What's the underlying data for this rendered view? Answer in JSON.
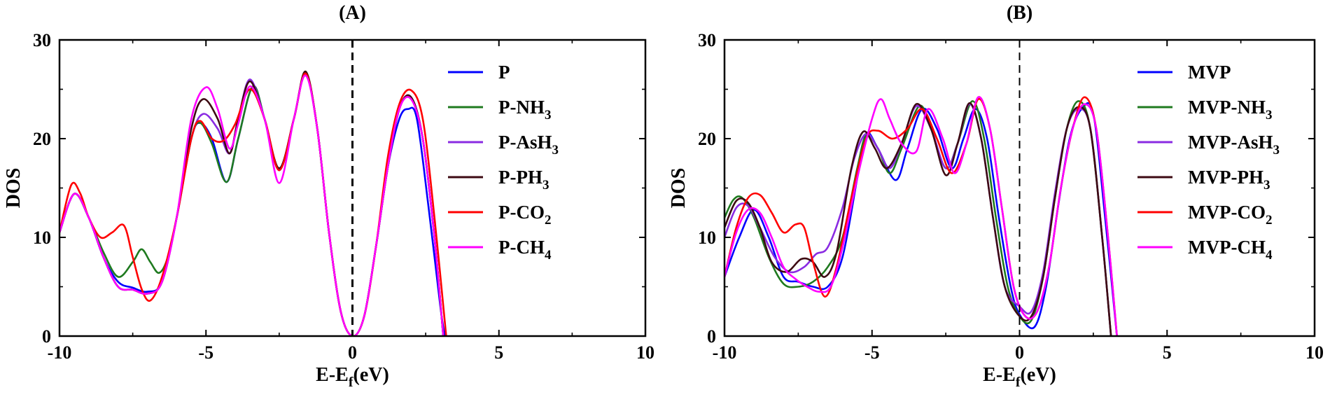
{
  "chart_data": [
    {
      "type": "line",
      "title": "(A)",
      "xlabel": "E-Ef(eV)",
      "xlabel_main": "E-E",
      "xlabel_sub": "f",
      "xlabel_tail": "(eV)",
      "ylabel": "DOS",
      "xlim": [
        -10,
        10
      ],
      "ylim": [
        0,
        30
      ],
      "xticks": [
        -10,
        -5,
        0,
        5,
        10
      ],
      "yticks": [
        0,
        10,
        20,
        30
      ],
      "xtick_labels": [
        "-10",
        "-5",
        "0",
        "5",
        "10"
      ],
      "ytick_labels": [
        "0",
        "10",
        "20",
        "30"
      ],
      "fermi_level": 0,
      "legend_position": "top-right",
      "series": [
        {
          "name": "P",
          "label_main": "P",
          "label_sub": "",
          "color": "#0000ff",
          "x": [
            -10,
            -9.5,
            -9,
            -8.5,
            -8,
            -7.5,
            -7,
            -6.5,
            -6,
            -5.5,
            -5.2,
            -4.8,
            -4.3,
            -3.9,
            -3.4,
            -3,
            -2.5,
            -2,
            -1.6,
            -1.2,
            -0.8,
            -0.4,
            0,
            0.4,
            0.8,
            1.2,
            1.6,
            1.9,
            2.2,
            2.6,
            3,
            3.15
          ],
          "y": [
            10.5,
            14.4,
            12,
            8,
            5.5,
            4.9,
            4.5,
            5.5,
            12,
            20,
            21.6,
            20,
            15.6,
            20,
            25.3,
            22,
            16.8,
            22,
            26.6,
            21,
            10.5,
            2.5,
            0,
            2,
            9,
            17,
            22,
            23,
            22,
            13,
            3,
            0
          ]
        },
        {
          "name": "P-NH3",
          "label_main": "P-NH",
          "label_sub": "3",
          "color": "#1f7a1f",
          "x": [
            -10,
            -9.5,
            -9,
            -8.5,
            -8,
            -7.5,
            -7.2,
            -6.9,
            -6.6,
            -6.3,
            -6,
            -5.5,
            -5.2,
            -4.8,
            -4.3,
            -3.9,
            -3.4,
            -3,
            -2.5,
            -2,
            -1.6,
            -1.2,
            -0.8,
            -0.4,
            0,
            0.4,
            0.8,
            1.2,
            1.6,
            2,
            2.4,
            2.8,
            3.1
          ],
          "y": [
            10.5,
            14.4,
            12,
            8.5,
            6,
            7.5,
            8.8,
            7.5,
            6.4,
            8,
            12,
            20,
            21.6,
            19.5,
            15.6,
            20,
            25.3,
            22,
            16.8,
            22,
            26.6,
            21,
            10.5,
            2.5,
            0,
            2,
            9,
            17,
            23,
            24.2,
            20,
            10,
            0
          ]
        },
        {
          "name": "P-AsH3",
          "label_main": "P-AsH",
          "label_sub": "3",
          "color": "#8a2be2",
          "x": [
            -10,
            -9.5,
            -9,
            -8.5,
            -8,
            -7.5,
            -7,
            -6.5,
            -6,
            -5.5,
            -5.1,
            -4.6,
            -4.2,
            -3.9,
            -3.5,
            -3,
            -2.5,
            -2,
            -1.6,
            -1.2,
            -0.8,
            -0.4,
            0,
            0.4,
            0.8,
            1.2,
            1.6,
            2,
            2.4,
            2.8,
            3.1
          ],
          "y": [
            10.5,
            14.4,
            12,
            8,
            5,
            4.7,
            4.3,
            5.5,
            12,
            20,
            22.5,
            21,
            18.5,
            22,
            26,
            22,
            16.8,
            22,
            26.6,
            21,
            10.5,
            2.5,
            0,
            2,
            9,
            17,
            23,
            24.2,
            20,
            10,
            0
          ]
        },
        {
          "name": "P-PH3",
          "label_main": "P-PH",
          "label_sub": "3",
          "color": "#3d0a12",
          "x": [
            -10,
            -9.5,
            -9,
            -8.5,
            -8,
            -7.5,
            -7,
            -6.5,
            -6,
            -5.5,
            -5.1,
            -4.6,
            -4.2,
            -3.9,
            -3.5,
            -3,
            -2.5,
            -2,
            -1.6,
            -1.2,
            -0.8,
            -0.4,
            0,
            0.4,
            0.8,
            1.2,
            1.6,
            2,
            2.4,
            2.8,
            3.1
          ],
          "y": [
            10.5,
            14.4,
            12,
            8,
            5,
            4.7,
            4.3,
            5.5,
            12,
            21,
            24,
            22,
            18.5,
            22,
            25.8,
            22,
            17,
            22,
            26.8,
            21,
            10.5,
            2.5,
            0,
            2,
            9,
            17,
            23,
            24.2,
            20,
            10,
            0
          ]
        },
        {
          "name": "P-CO2",
          "label_main": "P-CO",
          "label_sub": "2",
          "color": "#ff0000",
          "x": [
            -10,
            -9.6,
            -9.3,
            -9,
            -8.6,
            -8.2,
            -7.8,
            -7.5,
            -7.2,
            -6.9,
            -6.5,
            -6,
            -5.5,
            -5.2,
            -4.8,
            -4.4,
            -4,
            -3.5,
            -3,
            -2.5,
            -2,
            -1.6,
            -1.2,
            -0.8,
            -0.4,
            0,
            0.4,
            0.8,
            1.2,
            1.6,
            2,
            2.4,
            2.8,
            3.2
          ],
          "y": [
            10.5,
            15.3,
            14.5,
            12,
            10,
            10.5,
            11.2,
            8,
            4.8,
            3.6,
            6,
            12,
            20,
            21.8,
            20,
            19.8,
            21.5,
            25,
            22,
            16.8,
            22,
            26.6,
            21,
            10.5,
            2.5,
            0,
            2,
            9,
            18,
            23.5,
            24.9,
            22,
            12,
            0
          ]
        },
        {
          "name": "P-CH4",
          "label_main": "P-CH",
          "label_sub": "4",
          "color": "#ff00ff",
          "x": [
            -10,
            -9.5,
            -9,
            -8.5,
            -8,
            -7.5,
            -7,
            -6.5,
            -6,
            -5.5,
            -5,
            -4.6,
            -4.2,
            -3.9,
            -3.5,
            -3,
            -2.5,
            -2,
            -1.6,
            -1.2,
            -0.8,
            -0.4,
            0,
            0.4,
            0.8,
            1.2,
            1.6,
            2,
            2.4,
            2.8,
            3.1
          ],
          "y": [
            10.5,
            14.4,
            12,
            8,
            5,
            4.7,
            4.3,
            5.5,
            12,
            22,
            25.2,
            23,
            19,
            21.5,
            25.3,
            22,
            15.5,
            22,
            26.4,
            21,
            10.5,
            2.5,
            0,
            2,
            9,
            17,
            23,
            24,
            20,
            10,
            0
          ]
        }
      ]
    },
    {
      "type": "line",
      "title": "(B)",
      "xlabel": "E-Ef(eV)",
      "xlabel_main": "E-E",
      "xlabel_sub": "f",
      "xlabel_tail": "(eV)",
      "ylabel": "DOS",
      "xlim": [
        -10,
        10
      ],
      "ylim": [
        0,
        30
      ],
      "xticks": [
        -10,
        -5,
        0,
        5,
        10
      ],
      "yticks": [
        0,
        10,
        20,
        30
      ],
      "xtick_labels": [
        "-10",
        "-5",
        "0",
        "5",
        "10"
      ],
      "ytick_labels": [
        "0",
        "10",
        "20",
        "30"
      ],
      "fermi_level": 0,
      "legend_position": "top-right",
      "series": [
        {
          "name": "MVP",
          "label_main": "MVP",
          "label_sub": "",
          "color": "#0000ff",
          "x": [
            -10,
            -9.5,
            -9,
            -8.5,
            -8,
            -7.5,
            -7,
            -6.5,
            -6,
            -5.5,
            -5.2,
            -4.8,
            -4.2,
            -3.8,
            -3.3,
            -2.8,
            -2.3,
            -1.9,
            -1.5,
            -1.1,
            -0.7,
            -0.3,
            0,
            0.5,
            0.9,
            1.3,
            1.7,
            2.1,
            2.5,
            2.9,
            3.3
          ],
          "y": [
            6,
            10,
            12.8,
            10,
            6,
            5.5,
            5,
            5,
            8,
            16,
            20.5,
            19,
            15.8,
            19,
            23,
            21,
            17,
            20,
            23,
            20,
            12,
            5,
            2.2,
            0.9,
            5,
            13,
            20,
            23,
            22.5,
            12,
            0
          ]
        },
        {
          "name": "MVP-NH3",
          "label_main": "MVP-NH",
          "label_sub": "3",
          "color": "#1f7a1f",
          "x": [
            -10,
            -9.7,
            -9.4,
            -9,
            -8.5,
            -8,
            -7.5,
            -7,
            -6.5,
            -6,
            -5.5,
            -5.2,
            -4.8,
            -4.4,
            -4,
            -3.4,
            -3,
            -2.5,
            -2.1,
            -1.6,
            -1.2,
            -0.8,
            -0.4,
            0,
            0.4,
            0.8,
            1.2,
            1.6,
            2,
            2.4,
            2.8,
            3.1
          ],
          "y": [
            12,
            13.8,
            14,
            12,
            8,
            5.3,
            5,
            5.5,
            7,
            10,
            17,
            20.3,
            19,
            16.5,
            19,
            23.3,
            21,
            17,
            19.5,
            23.8,
            20,
            12,
            5,
            2,
            1.6,
            6,
            14,
            21,
            23.8,
            21,
            10,
            0
          ]
        },
        {
          "name": "MVP-AsH3",
          "label_main": "MVP-AsH",
          "label_sub": "3",
          "color": "#8a2be2",
          "x": [
            -10,
            -9.6,
            -9.2,
            -8.8,
            -8.3,
            -7.8,
            -7.3,
            -6.9,
            -6.5,
            -6,
            -5.6,
            -5.2,
            -4.8,
            -4.4,
            -4,
            -3.5,
            -3,
            -2.5,
            -2.1,
            -1.7,
            -1.3,
            -0.9,
            -0.5,
            0,
            0.4,
            0.8,
            1.2,
            1.6,
            2,
            2.4,
            2.8,
            3.1
          ],
          "y": [
            10,
            13,
            13.2,
            11,
            8,
            6.5,
            7,
            8.3,
            9,
            13,
            18,
            20.5,
            19,
            17,
            19.5,
            23.3,
            21,
            17,
            19.5,
            23.5,
            20,
            12,
            5,
            3,
            2.5,
            6.5,
            14.5,
            21,
            23,
            21,
            10,
            0
          ]
        },
        {
          "name": "MVP-PH3",
          "label_main": "MVP-PH",
          "label_sub": "3",
          "color": "#3d0a12",
          "x": [
            -10,
            -9.6,
            -9.2,
            -8.8,
            -8.4,
            -7.9,
            -7.4,
            -7,
            -6.6,
            -6.2,
            -5.7,
            -5.3,
            -4.9,
            -4.5,
            -4,
            -3.5,
            -3,
            -2.5,
            -2.1,
            -1.7,
            -1.3,
            -0.9,
            -0.5,
            0,
            0.4,
            0.8,
            1.2,
            1.6,
            2,
            2.4,
            2.8,
            3.1
          ],
          "y": [
            11,
            13.7,
            13.5,
            11,
            7.5,
            6.5,
            7.8,
            7.5,
            6,
            8.5,
            17,
            20.7,
            19,
            17,
            19.5,
            23.5,
            21,
            16.3,
            19.5,
            23.6,
            20,
            12,
            5,
            2,
            2,
            6,
            14,
            21,
            23.2,
            21,
            10,
            0
          ]
        },
        {
          "name": "MVP-CO2",
          "label_main": "MVP-CO",
          "label_sub": "2",
          "color": "#ff0000",
          "x": [
            -10,
            -9.6,
            -9.2,
            -8.8,
            -8.4,
            -8,
            -7.6,
            -7.3,
            -7,
            -6.6,
            -6.2,
            -5.7,
            -5.2,
            -4.8,
            -4.3,
            -3.8,
            -3.3,
            -2.8,
            -2.3,
            -1.8,
            -1.4,
            -1,
            -0.6,
            -0.2,
            0.2,
            0.6,
            1,
            1.4,
            1.8,
            2.2,
            2.6,
            3,
            3.3
          ],
          "y": [
            6,
            11,
            14,
            14.3,
            12.5,
            10.5,
            11.3,
            11,
            7.5,
            4,
            7,
            14,
            20,
            20.8,
            20,
            21,
            23,
            20,
            16.5,
            19.5,
            24,
            21,
            13,
            5,
            2,
            2.5,
            7,
            15,
            21,
            24.2,
            21,
            10,
            0
          ]
        },
        {
          "name": "MVP-CH4",
          "label_main": "MVP-CH",
          "label_sub": "4",
          "color": "#ff00ff",
          "x": [
            -10,
            -9.6,
            -9.2,
            -8.8,
            -8.4,
            -8,
            -7.6,
            -7.2,
            -6.8,
            -6.4,
            -6,
            -5.5,
            -5,
            -4.7,
            -4.4,
            -4,
            -3.5,
            -3.1,
            -2.6,
            -2.2,
            -1.8,
            -1.4,
            -1,
            -0.6,
            -0.2,
            0.2,
            0.6,
            1,
            1.4,
            1.8,
            2.2,
            2.6,
            3,
            3.3
          ],
          "y": [
            6,
            10.5,
            12.8,
            12.5,
            10,
            7,
            5.8,
            5,
            4.5,
            5,
            9,
            16,
            22,
            24,
            22,
            19.5,
            18.7,
            23,
            20,
            16.5,
            19.5,
            24.2,
            21,
            13,
            5,
            2,
            2.5,
            7,
            15,
            21,
            23.5,
            21,
            10,
            0
          ]
        }
      ]
    }
  ]
}
